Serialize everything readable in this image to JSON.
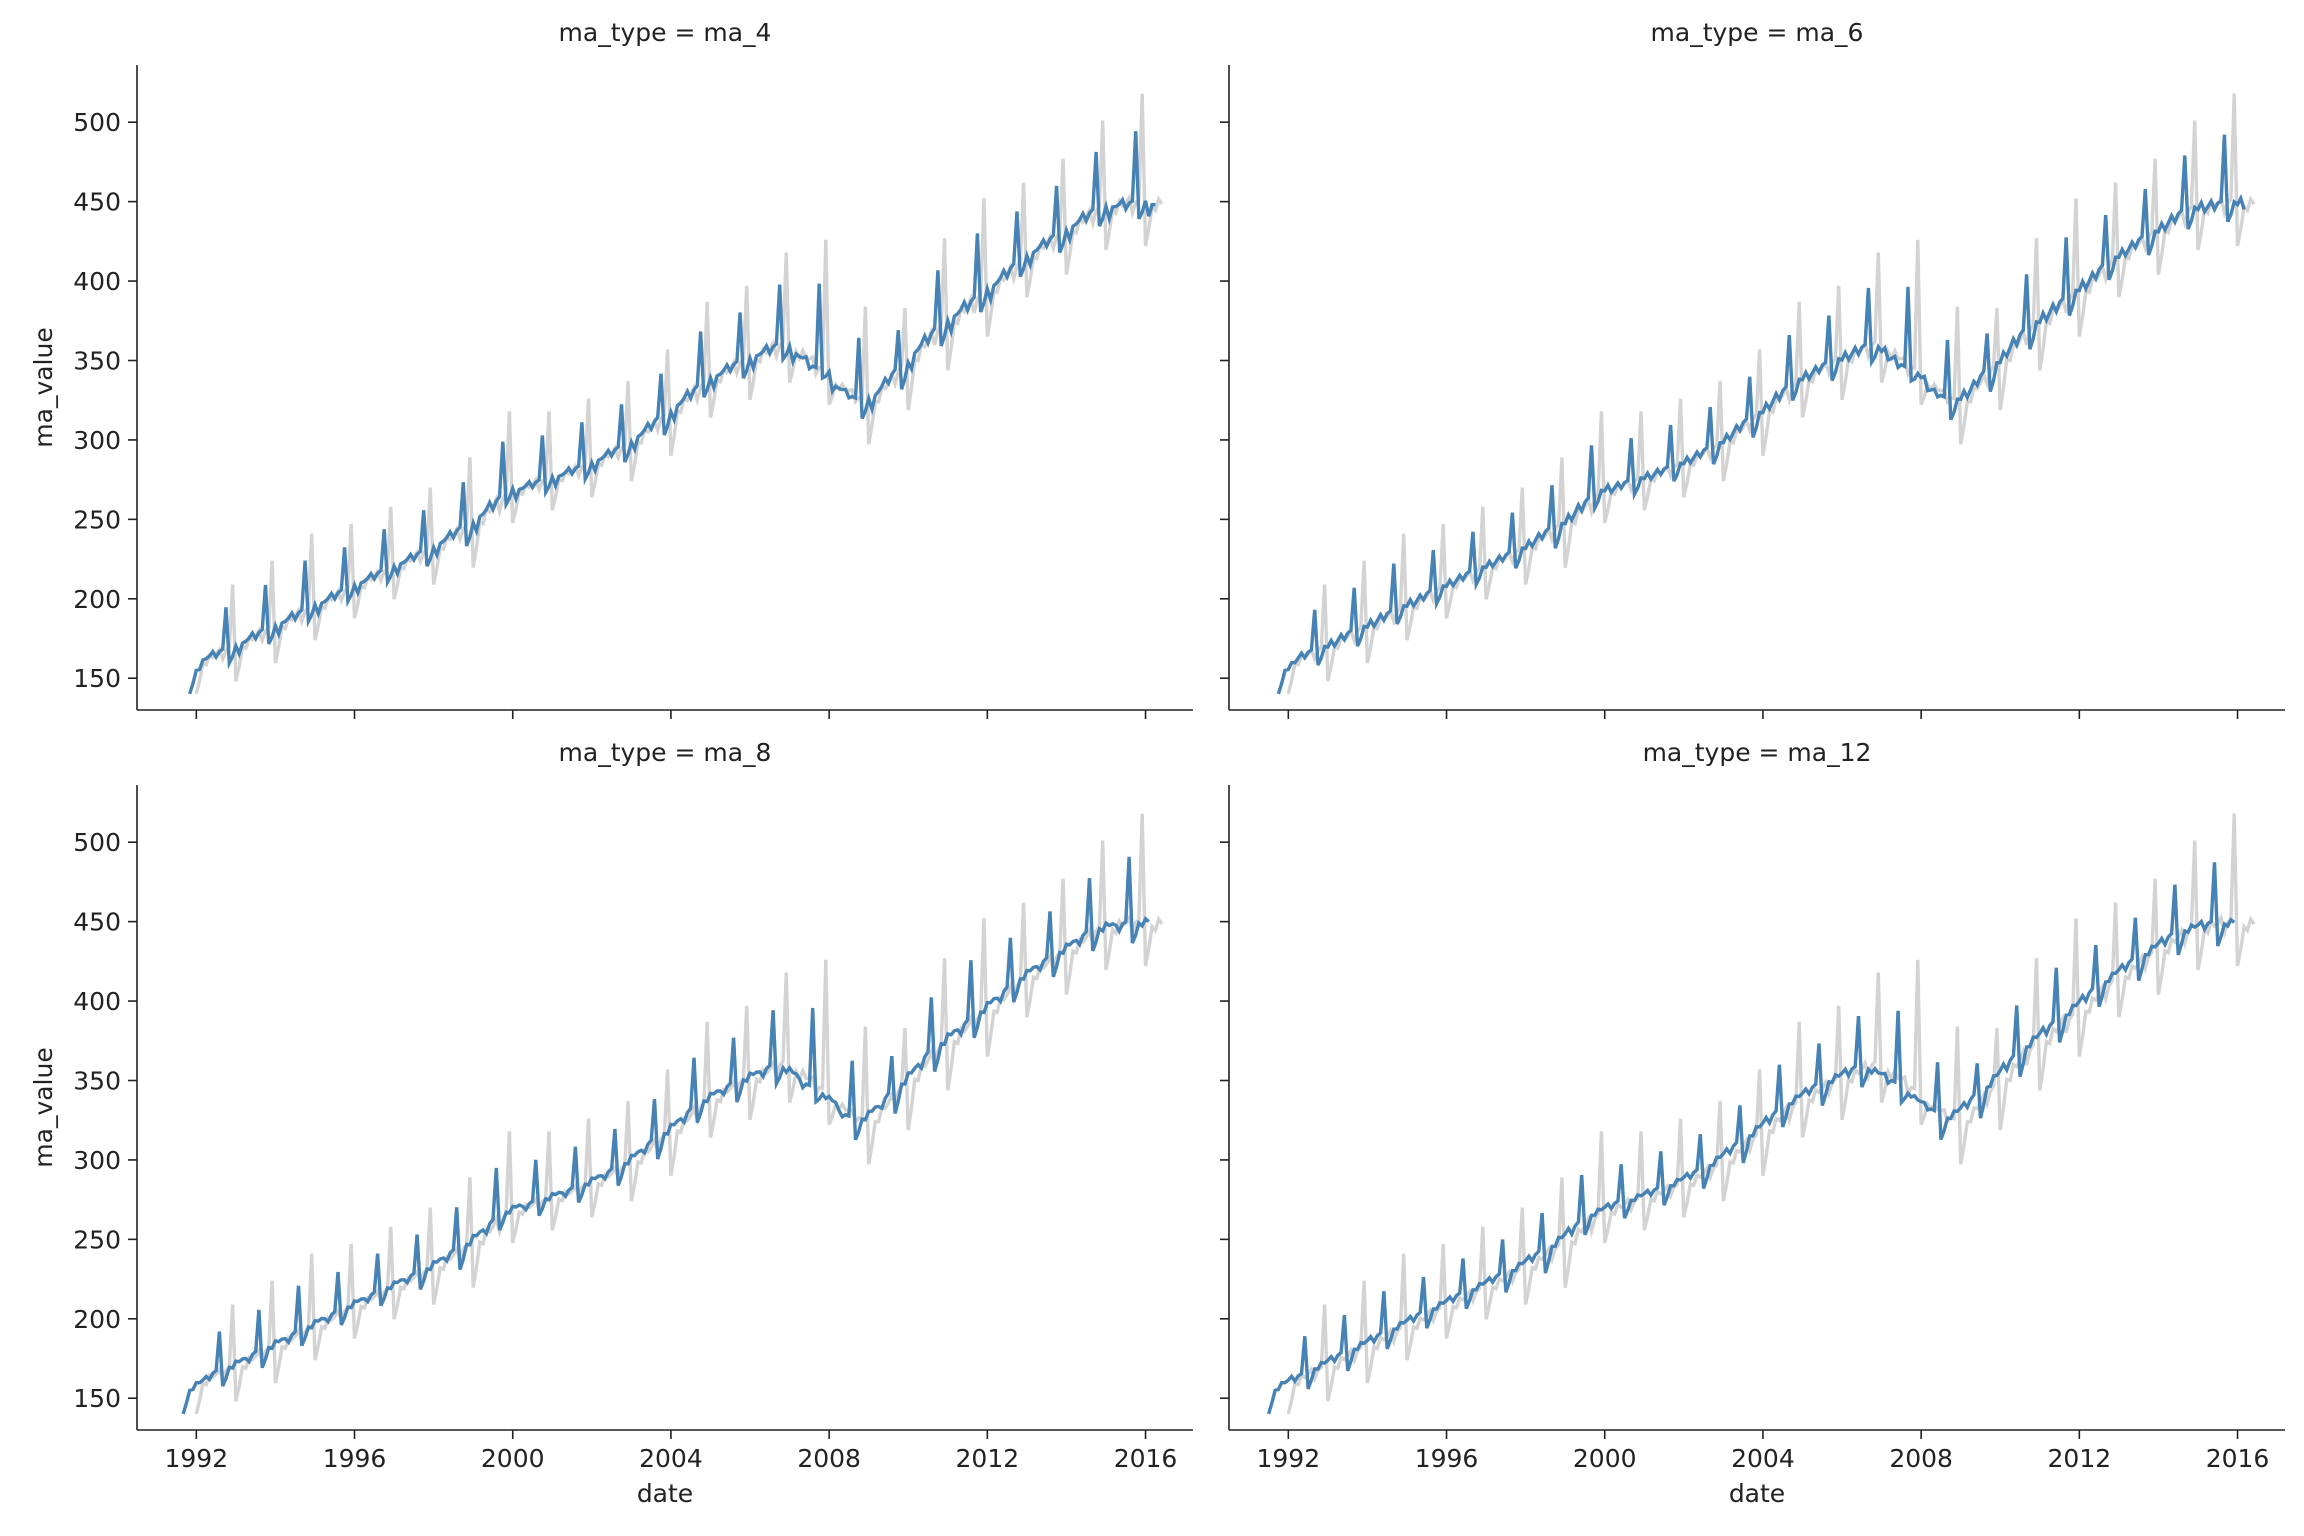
{
  "chart_data": {
    "type": "line",
    "facet_variable": "ma_type",
    "title_template": "{var} = {val}",
    "xlabel": "date",
    "ylabel": "ma_value",
    "xlim": [
      1990.5,
      2017.2
    ],
    "ylim": [
      130,
      536
    ],
    "x_ticks": [
      "1992",
      "1996",
      "2000",
      "2004",
      "2008",
      "2012",
      "2016"
    ],
    "y_ticks": [
      150,
      200,
      250,
      300,
      350,
      400,
      450,
      500
    ],
    "grid": false,
    "legend": "none",
    "colors": {
      "raw": "#d3d3d3",
      "ma": "#4682b4"
    },
    "raw_series": {
      "name": "",
      "start": 1992.0,
      "step_months": 1,
      "pattern": "monthly seasonal series with December spike and January dip",
      "anchors": {
        "years": [
          1992,
          1993,
          1994,
          1995,
          1996,
          1997,
          1998,
          1999,
          2000,
          2001,
          2002,
          2003,
          2004,
          2005,
          2006,
          2007,
          2008,
          2009,
          2010,
          2011,
          2012,
          2013,
          2014,
          2015,
          2016
        ],
        "level": [
          160,
          170,
          183,
          195,
          208,
          220,
          232,
          248,
          268,
          276,
          285,
          298,
          318,
          338,
          352,
          362,
          340,
          322,
          350,
          375,
          393,
          415,
          432,
          448,
          450
        ],
        "december_peak": [
          209,
          224,
          241,
          247,
          258,
          270,
          289,
          318,
          318,
          326,
          337,
          357,
          387,
          397,
          418,
          426,
          384,
          383,
          427,
          452,
          462,
          477,
          501,
          518,
          519
        ]
      }
    },
    "facets": [
      {
        "value": "ma_4",
        "window": 4
      },
      {
        "value": "ma_6",
        "window": 6
      },
      {
        "value": "ma_8",
        "window": 8
      },
      {
        "value": "ma_12",
        "window": 12
      }
    ]
  }
}
